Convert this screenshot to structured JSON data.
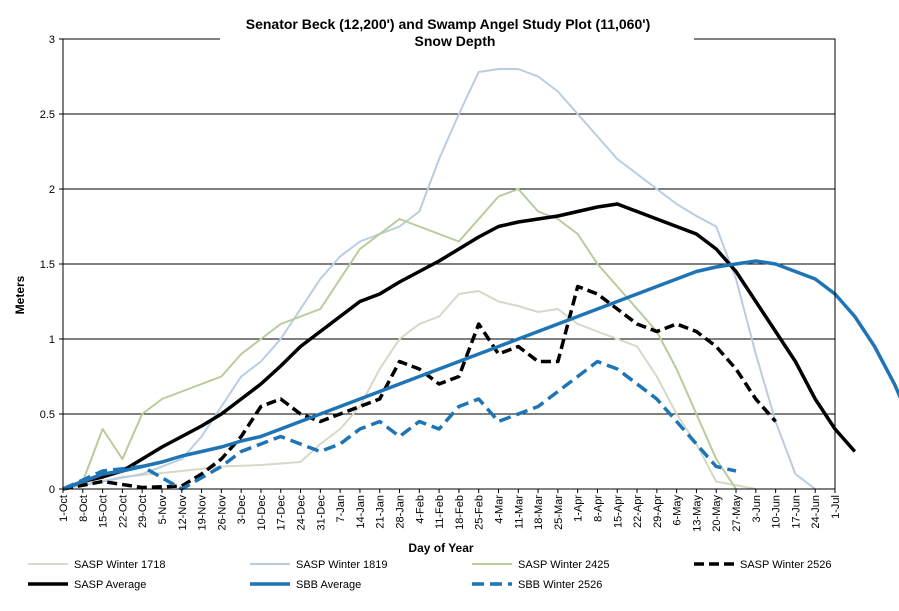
{
  "chart_data": {
    "type": "line",
    "title": "Senator Beck (12,200') and Swamp Angel Study Plot (11,060')",
    "subtitle": "Snow Depth",
    "xlabel": "Day of Year",
    "ylabel": "Meters",
    "ylim": [
      0,
      3
    ],
    "yticks": [
      "0",
      "0.5",
      "1",
      "1.5",
      "2",
      "2.5",
      "3"
    ],
    "grid": "horizontal",
    "legend_position": "bottom",
    "x_tick_labels": [
      "1-Oct",
      "8-Oct",
      "15-Oct",
      "22-Oct",
      "29-Oct",
      "5-Nov",
      "12-Nov",
      "19-Nov",
      "26-Nov",
      "3-Dec",
      "10-Dec",
      "17-Dec",
      "24-Dec",
      "31-Dec",
      "7-Jan",
      "14-Jan",
      "21-Jan",
      "28-Jan",
      "4-Feb",
      "11-Feb",
      "18-Feb",
      "25-Feb",
      "4-Mar",
      "11-Mar",
      "18-Mar",
      "25-Mar",
      "1-Apr",
      "8-Apr",
      "15-Apr",
      "22-Apr",
      "29-Apr",
      "6-May",
      "13-May",
      "20-May",
      "27-May",
      "3-Jun",
      "10-Jun",
      "17-Jun",
      "24-Jun",
      "1-Jul"
    ],
    "series": [
      {
        "name": "SASP Winter 1718",
        "color": "#d5d9c6",
        "width": 2,
        "dash": "solid",
        "points": [
          [
            0,
            0
          ],
          [
            21,
            0.08
          ],
          [
            42,
            0.12
          ],
          [
            56,
            0.15
          ],
          [
            70,
            0.16
          ],
          [
            84,
            0.18
          ],
          [
            91,
            0.3
          ],
          [
            98,
            0.4
          ],
          [
            105,
            0.55
          ],
          [
            112,
            0.8
          ],
          [
            119,
            1.0
          ],
          [
            126,
            1.1
          ],
          [
            133,
            1.15
          ],
          [
            140,
            1.3
          ],
          [
            147,
            1.32
          ],
          [
            154,
            1.25
          ],
          [
            161,
            1.22
          ],
          [
            168,
            1.18
          ],
          [
            175,
            1.2
          ],
          [
            182,
            1.1
          ],
          [
            189,
            1.05
          ],
          [
            196,
            1.0
          ],
          [
            203,
            0.95
          ],
          [
            210,
            0.75
          ],
          [
            217,
            0.5
          ],
          [
            224,
            0.3
          ],
          [
            231,
            0.05
          ],
          [
            245,
            0.0
          ]
        ]
      },
      {
        "name": "SASP Winter 1819",
        "color": "#b8cde2",
        "width": 2,
        "dash": "solid",
        "points": [
          [
            0,
            0
          ],
          [
            14,
            0.05
          ],
          [
            28,
            0.1
          ],
          [
            35,
            0.15
          ],
          [
            42,
            0.2
          ],
          [
            49,
            0.35
          ],
          [
            56,
            0.55
          ],
          [
            63,
            0.75
          ],
          [
            70,
            0.85
          ],
          [
            77,
            1.0
          ],
          [
            84,
            1.2
          ],
          [
            91,
            1.4
          ],
          [
            98,
            1.55
          ],
          [
            105,
            1.65
          ],
          [
            112,
            1.7
          ],
          [
            119,
            1.75
          ],
          [
            126,
            1.85
          ],
          [
            133,
            2.2
          ],
          [
            140,
            2.5
          ],
          [
            147,
            2.78
          ],
          [
            154,
            2.8
          ],
          [
            161,
            2.8
          ],
          [
            168,
            2.75
          ],
          [
            175,
            2.65
          ],
          [
            182,
            2.5
          ],
          [
            189,
            2.35
          ],
          [
            196,
            2.2
          ],
          [
            203,
            2.1
          ],
          [
            210,
            2.0
          ],
          [
            217,
            1.9
          ],
          [
            224,
            1.82
          ],
          [
            231,
            1.75
          ],
          [
            238,
            1.4
          ],
          [
            245,
            0.9
          ],
          [
            252,
            0.45
          ],
          [
            259,
            0.1
          ],
          [
            266,
            0.0
          ]
        ]
      },
      {
        "name": "SASP Winter 2425",
        "color": "#b8cc9a",
        "width": 2,
        "dash": "solid",
        "points": [
          [
            0,
            0
          ],
          [
            7,
            0.05
          ],
          [
            14,
            0.4
          ],
          [
            21,
            0.2
          ],
          [
            28,
            0.5
          ],
          [
            35,
            0.6
          ],
          [
            42,
            0.65
          ],
          [
            49,
            0.7
          ],
          [
            56,
            0.75
          ],
          [
            63,
            0.9
          ],
          [
            70,
            1.0
          ],
          [
            77,
            1.1
          ],
          [
            84,
            1.15
          ],
          [
            91,
            1.2
          ],
          [
            98,
            1.4
          ],
          [
            105,
            1.6
          ],
          [
            112,
            1.7
          ],
          [
            119,
            1.8
          ],
          [
            126,
            1.75
          ],
          [
            133,
            1.7
          ],
          [
            140,
            1.65
          ],
          [
            147,
            1.8
          ],
          [
            154,
            1.95
          ],
          [
            161,
            2.0
          ],
          [
            168,
            1.85
          ],
          [
            175,
            1.8
          ],
          [
            182,
            1.7
          ],
          [
            189,
            1.5
          ],
          [
            196,
            1.35
          ],
          [
            203,
            1.2
          ],
          [
            210,
            1.05
          ],
          [
            217,
            0.8
          ],
          [
            224,
            0.5
          ],
          [
            231,
            0.2
          ],
          [
            238,
            0.0
          ]
        ]
      },
      {
        "name": "SASP Winter 2526",
        "color": "#000000",
        "width": 3.5,
        "dash": "10 5",
        "points": [
          [
            0,
            0
          ],
          [
            14,
            0.05
          ],
          [
            28,
            0.01
          ],
          [
            42,
            0.02
          ],
          [
            49,
            0.1
          ],
          [
            56,
            0.2
          ],
          [
            63,
            0.35
          ],
          [
            70,
            0.55
          ],
          [
            77,
            0.6
          ],
          [
            84,
            0.5
          ],
          [
            91,
            0.45
          ],
          [
            98,
            0.5
          ],
          [
            105,
            0.55
          ],
          [
            112,
            0.6
          ],
          [
            119,
            0.85
          ],
          [
            126,
            0.8
          ],
          [
            133,
            0.7
          ],
          [
            140,
            0.75
          ],
          [
            147,
            1.1
          ],
          [
            154,
            0.9
          ],
          [
            161,
            0.95
          ],
          [
            168,
            0.85
          ],
          [
            175,
            0.85
          ],
          [
            182,
            1.35
          ],
          [
            189,
            1.3
          ],
          [
            196,
            1.2
          ],
          [
            203,
            1.1
          ],
          [
            210,
            1.05
          ],
          [
            217,
            1.1
          ],
          [
            224,
            1.05
          ],
          [
            231,
            0.95
          ],
          [
            238,
            0.8
          ],
          [
            245,
            0.6
          ],
          [
            252,
            0.45
          ]
        ]
      },
      {
        "name": "SASP Average",
        "color": "#000000",
        "width": 3.5,
        "dash": "solid",
        "points": [
          [
            0,
            0
          ],
          [
            7,
            0.05
          ],
          [
            14,
            0.08
          ],
          [
            21,
            0.12
          ],
          [
            28,
            0.2
          ],
          [
            35,
            0.28
          ],
          [
            42,
            0.35
          ],
          [
            49,
            0.42
          ],
          [
            56,
            0.5
          ],
          [
            63,
            0.6
          ],
          [
            70,
            0.7
          ],
          [
            77,
            0.82
          ],
          [
            84,
            0.95
          ],
          [
            91,
            1.05
          ],
          [
            98,
            1.15
          ],
          [
            105,
            1.25
          ],
          [
            112,
            1.3
          ],
          [
            119,
            1.38
          ],
          [
            126,
            1.45
          ],
          [
            133,
            1.52
          ],
          [
            140,
            1.6
          ],
          [
            147,
            1.68
          ],
          [
            154,
            1.75
          ],
          [
            161,
            1.78
          ],
          [
            168,
            1.8
          ],
          [
            175,
            1.82
          ],
          [
            182,
            1.85
          ],
          [
            189,
            1.88
          ],
          [
            196,
            1.9
          ],
          [
            203,
            1.85
          ],
          [
            210,
            1.8
          ],
          [
            217,
            1.75
          ],
          [
            224,
            1.7
          ],
          [
            231,
            1.6
          ],
          [
            238,
            1.45
          ],
          [
            245,
            1.25
          ],
          [
            252,
            1.05
          ],
          [
            259,
            0.85
          ],
          [
            266,
            0.6
          ],
          [
            273,
            0.4
          ],
          [
            280,
            0.25
          ]
        ]
      },
      {
        "name": "SBB Average",
        "color": "#1f74b6",
        "width": 3.5,
        "dash": "solid",
        "points": [
          [
            0,
            0
          ],
          [
            7,
            0.05
          ],
          [
            14,
            0.1
          ],
          [
            21,
            0.12
          ],
          [
            28,
            0.15
          ],
          [
            35,
            0.18
          ],
          [
            42,
            0.22
          ],
          [
            49,
            0.25
          ],
          [
            56,
            0.28
          ],
          [
            63,
            0.32
          ],
          [
            70,
            0.35
          ],
          [
            77,
            0.4
          ],
          [
            84,
            0.45
          ],
          [
            91,
            0.5
          ],
          [
            98,
            0.55
          ],
          [
            105,
            0.6
          ],
          [
            112,
            0.65
          ],
          [
            119,
            0.7
          ],
          [
            126,
            0.75
          ],
          [
            133,
            0.8
          ],
          [
            140,
            0.85
          ],
          [
            147,
            0.9
          ],
          [
            154,
            0.95
          ],
          [
            161,
            1.0
          ],
          [
            168,
            1.05
          ],
          [
            175,
            1.1
          ],
          [
            182,
            1.15
          ],
          [
            189,
            1.2
          ],
          [
            196,
            1.25
          ],
          [
            203,
            1.3
          ],
          [
            210,
            1.35
          ],
          [
            217,
            1.4
          ],
          [
            224,
            1.45
          ],
          [
            231,
            1.48
          ],
          [
            238,
            1.5
          ],
          [
            245,
            1.52
          ],
          [
            252,
            1.5
          ],
          [
            259,
            1.45
          ],
          [
            266,
            1.4
          ],
          [
            273,
            1.3
          ],
          [
            280,
            1.15
          ],
          [
            287,
            0.95
          ],
          [
            294,
            0.7
          ],
          [
            301,
            0.4
          ]
        ]
      },
      {
        "name": "SBB Winter 2526",
        "color": "#1f74b6",
        "width": 3.5,
        "dash": "12 6",
        "points": [
          [
            0,
            0
          ],
          [
            14,
            0.12
          ],
          [
            28,
            0.15
          ],
          [
            42,
            0.0
          ],
          [
            56,
            0.15
          ],
          [
            63,
            0.25
          ],
          [
            70,
            0.3
          ],
          [
            77,
            0.35
          ],
          [
            84,
            0.3
          ],
          [
            91,
            0.25
          ],
          [
            98,
            0.3
          ],
          [
            105,
            0.4
          ],
          [
            112,
            0.45
          ],
          [
            119,
            0.35
          ],
          [
            126,
            0.45
          ],
          [
            133,
            0.4
          ],
          [
            140,
            0.55
          ],
          [
            147,
            0.6
          ],
          [
            154,
            0.45
          ],
          [
            161,
            0.5
          ],
          [
            168,
            0.55
          ],
          [
            175,
            0.65
          ],
          [
            182,
            0.75
          ],
          [
            189,
            0.85
          ],
          [
            196,
            0.8
          ],
          [
            203,
            0.7
          ],
          [
            210,
            0.6
          ],
          [
            217,
            0.45
          ],
          [
            224,
            0.3
          ],
          [
            231,
            0.15
          ],
          [
            238,
            0.12
          ]
        ]
      }
    ]
  }
}
